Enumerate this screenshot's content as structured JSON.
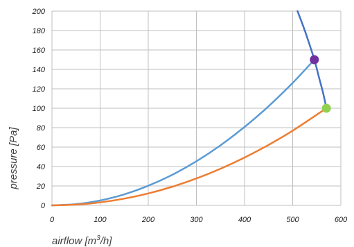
{
  "chart_data": {
    "type": "line",
    "title": "",
    "xlabel": {
      "prefix": "airflow [m",
      "superscript": "3",
      "suffix": "/h]"
    },
    "ylabel": "pressure [Pa]",
    "xlim": [
      0,
      600
    ],
    "ylim": [
      0,
      200
    ],
    "xticks": [
      0,
      100,
      200,
      300,
      400,
      500,
      600
    ],
    "yticks": [
      0,
      20,
      40,
      60,
      80,
      100,
      120,
      140,
      160,
      180,
      200
    ],
    "grid": true,
    "legend": "none",
    "series": [
      {
        "color": "#5b9bd5",
        "points": [
          [
            0,
            0
          ],
          [
            50,
            1.26
          ],
          [
            100,
            5.04
          ],
          [
            150,
            11.3
          ],
          [
            200,
            20.2
          ],
          [
            250,
            31.5
          ],
          [
            300,
            45.4
          ],
          [
            350,
            61.8
          ],
          [
            400,
            80.7
          ],
          [
            450,
            102.1
          ],
          [
            500,
            126.1
          ],
          [
            545,
            150
          ]
        ]
      },
      {
        "color": "#ed7d31",
        "points": [
          [
            0,
            0
          ],
          [
            50,
            0.77
          ],
          [
            100,
            3.08
          ],
          [
            150,
            6.93
          ],
          [
            200,
            12.3
          ],
          [
            250,
            19.2
          ],
          [
            300,
            27.7
          ],
          [
            350,
            37.7
          ],
          [
            400,
            49.2
          ],
          [
            450,
            62.3
          ],
          [
            500,
            76.9
          ],
          [
            570,
            100
          ]
        ]
      },
      {
        "color": "#4472c4",
        "points": [
          [
            510,
            200
          ],
          [
            520,
            187
          ],
          [
            530,
            173
          ],
          [
            545,
            150
          ],
          [
            555,
            131
          ],
          [
            563,
            116
          ],
          [
            570,
            100
          ]
        ]
      }
    ],
    "markers": [
      {
        "x": 545,
        "y": 150,
        "color": "#7030a0"
      },
      {
        "x": 570,
        "y": 100,
        "color": "#92d050"
      }
    ]
  }
}
